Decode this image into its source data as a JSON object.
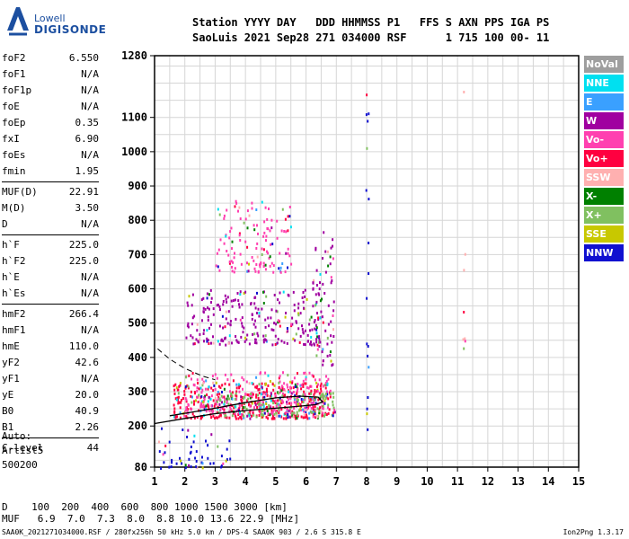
{
  "logo": {
    "line1": "Lowell",
    "line2": "DIGISONDE"
  },
  "header": {
    "line1": "Station YYYY DAY   DDD HHMMSS P1   FFS S AXN PPS IGA PS",
    "line2": "SaoLuis 2021 Sep28 271 034000 RSF      1 715 100 00- 11"
  },
  "params": [
    {
      "k": "foF2",
      "v": "6.550"
    },
    {
      "k": "foF1",
      "v": "N/A"
    },
    {
      "k": "foF1p",
      "v": "N/A"
    },
    {
      "k": "foE",
      "v": "N/A"
    },
    {
      "k": "foEp",
      "v": "0.35"
    },
    {
      "k": "fxI",
      "v": "6.90"
    },
    {
      "k": "foEs",
      "v": "N/A"
    },
    {
      "k": "fmin",
      "v": "1.95"
    },
    {
      "k": "sep"
    },
    {
      "k": "MUF(D)",
      "v": "22.91"
    },
    {
      "k": "M(D)",
      "v": "3.50"
    },
    {
      "k": "D",
      "v": "N/A"
    },
    {
      "k": "sep"
    },
    {
      "k": "h`F",
      "v": "225.0"
    },
    {
      "k": "h`F2",
      "v": "225.0"
    },
    {
      "k": "h`E",
      "v": "N/A"
    },
    {
      "k": "h`Es",
      "v": "N/A"
    },
    {
      "k": "sep"
    },
    {
      "k": "hmF2",
      "v": "266.4"
    },
    {
      "k": "hmF1",
      "v": "N/A"
    },
    {
      "k": "hmE",
      "v": "110.0"
    },
    {
      "k": "yF2",
      "v": "42.6"
    },
    {
      "k": "yF1",
      "v": "N/A"
    },
    {
      "k": "yE",
      "v": "20.0"
    },
    {
      "k": "B0",
      "v": "40.9"
    },
    {
      "k": "B1",
      "v": "2.26"
    },
    {
      "k": "sep"
    },
    {
      "k": "C-level",
      "v": "44"
    }
  ],
  "auto": {
    "l1": "Auto:",
    "l2": "Artist5",
    "l3": "500200"
  },
  "legend": [
    {
      "label": "NoVal",
      "color": "#9e9e9e"
    },
    {
      "label": "NNE",
      "color": "#00e0f0"
    },
    {
      "label": "E",
      "color": "#3aa0ff"
    },
    {
      "label": "W",
      "color": "#a000a0"
    },
    {
      "label": "Vo-",
      "color": "#ff40b0"
    },
    {
      "label": "Vo+",
      "color": "#ff0040"
    },
    {
      "label": "SSW",
      "color": "#ffb0b0"
    },
    {
      "label": "X-",
      "color": "#008000"
    },
    {
      "label": "X+",
      "color": "#80c060"
    },
    {
      "label": "SSE",
      "color": "#c8c800"
    },
    {
      "label": "NNW",
      "color": "#1010d0"
    }
  ],
  "bottom": {
    "d_line": "D    100  200  400  600  800 1000 1500 3000 [km]",
    "muf_line": "MUF   6.9  7.0  7.3  8.0  8.8 10.0 13.6 22.9 [MHz]"
  },
  "footer": {
    "file": "SAA0K_2021271034000.RSF / 280fx256h 50 kHz 5.0 km / DPS-4 SAA0K 903 / 2.6 S 315.8 E",
    "version": "Ion2Png 1.3.17"
  },
  "chart_data": {
    "type": "scatter",
    "xlim": [
      1,
      15
    ],
    "ylim": [
      80,
      1280
    ],
    "x_ticks": [
      1,
      2,
      3,
      4,
      5,
      6,
      7,
      8,
      9,
      10,
      11,
      12,
      13,
      14,
      15
    ],
    "y_ticks": [
      80,
      200,
      300,
      400,
      500,
      600,
      700,
      800,
      900,
      1000,
      1100,
      1280
    ],
    "grid": true,
    "legend_position": "right",
    "profile_curve": [
      [
        1.0,
        207
      ],
      [
        2.0,
        222
      ],
      [
        3.0,
        236
      ],
      [
        4.0,
        245
      ],
      [
        5.0,
        252
      ],
      [
        5.8,
        258
      ],
      [
        6.3,
        262
      ],
      [
        6.55,
        270
      ],
      [
        6.4,
        284
      ],
      [
        5.8,
        287
      ],
      [
        5.0,
        282
      ],
      [
        4.0,
        268
      ],
      [
        3.0,
        252
      ],
      [
        2.0,
        237
      ],
      [
        1.5,
        230
      ]
    ],
    "dashed_trace": [
      [
        1.1,
        425
      ],
      [
        1.5,
        395
      ],
      [
        2.0,
        368
      ],
      [
        2.6,
        345
      ],
      [
        3.0,
        335
      ]
    ],
    "echo_clusters": [
      {
        "name": "o-trace main",
        "x": [
          1.6,
          6.8
        ],
        "y": [
          225,
          330
        ],
        "color": "#ff0040"
      },
      {
        "name": "o-trace pink",
        "x": [
          2.0,
          6.8
        ],
        "y": [
          240,
          360
        ],
        "color": "#ff40b0"
      },
      {
        "name": "x-trace",
        "x": [
          3.0,
          7.0
        ],
        "y": [
          230,
          300
        ],
        "color": "#80c060"
      },
      {
        "name": "second hop",
        "x": [
          2.0,
          6.5
        ],
        "y": [
          440,
          600
        ],
        "color": "#a000a0"
      },
      {
        "name": "third hop",
        "x": [
          3.0,
          5.5
        ],
        "y": [
          650,
          860
        ],
        "color": "#ff40b0"
      },
      {
        "name": "upper trace",
        "x": [
          6.2,
          6.9
        ],
        "y": [
          380,
          770
        ],
        "color": "#a000a0"
      },
      {
        "name": "low echoes",
        "x": [
          1.1,
          3.5
        ],
        "y": [
          80,
          200
        ],
        "color": "#1010d0"
      },
      {
        "name": "8 MHz line",
        "x": [
          7.95,
          8.05
        ],
        "y": [
          180,
          1190
        ],
        "color": "#1010d0"
      },
      {
        "name": "11.2 MHz line",
        "x": [
          11.15,
          11.25
        ],
        "y": [
          420,
          1220
        ],
        "color": "#ffb0b0"
      }
    ]
  }
}
